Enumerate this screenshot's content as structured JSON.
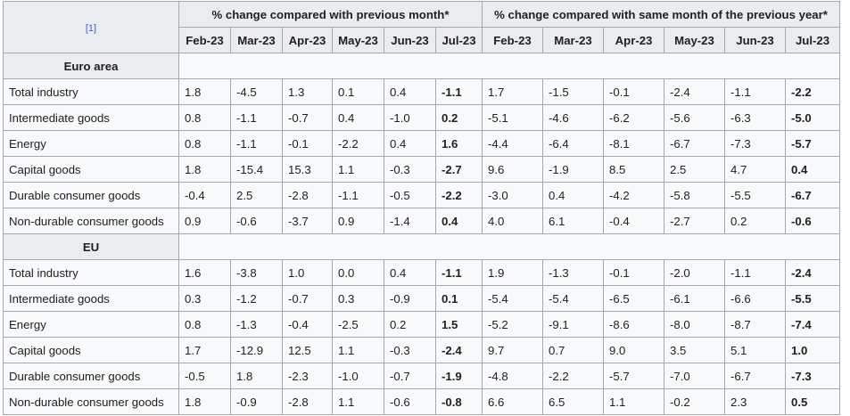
{
  "ref_label": "[1]",
  "group_headers": {
    "month": "% change compared with previous month*",
    "year": "% change compared with same month of the previous year*"
  },
  "months": [
    "Feb-23",
    "Mar-23",
    "Apr-23",
    "May-23",
    "Jun-23",
    "Jul-23"
  ],
  "sections": [
    {
      "title": "Euro area",
      "rows": [
        {
          "label": "Total industry",
          "month": [
            "1.8",
            "-4.5",
            "1.3",
            "0.1",
            "0.4",
            "-1.1"
          ],
          "year": [
            "1.7",
            "-1.5",
            "-0.1",
            "-2.4",
            "-1.1",
            "-2.2"
          ]
        },
        {
          "label": "Intermediate goods",
          "month": [
            "0.8",
            "-1.1",
            "-0.7",
            "0.4",
            "-1.0",
            "0.2"
          ],
          "year": [
            "-5.1",
            "-4.6",
            "-6.2",
            "-5.6",
            "-6.3",
            "-5.0"
          ]
        },
        {
          "label": "Energy",
          "month": [
            "0.8",
            "-1.1",
            "-0.1",
            "-2.2",
            "0.4",
            "1.6"
          ],
          "year": [
            "-4.4",
            "-6.4",
            "-8.1",
            "-6.7",
            "-7.3",
            "-5.7"
          ]
        },
        {
          "label": "Capital goods",
          "month": [
            "1.8",
            "-15.4",
            "15.3",
            "1.1",
            "-0.3",
            "-2.7"
          ],
          "year": [
            "9.6",
            "-1.9",
            "8.5",
            "2.5",
            "4.7",
            "0.4"
          ]
        },
        {
          "label": "Durable consumer goods",
          "month": [
            "-0.4",
            "2.5",
            "-2.8",
            "-1.1",
            "-0.5",
            "-2.2"
          ],
          "year": [
            "-3.0",
            "0.4",
            "-4.2",
            "-5.8",
            "-5.5",
            "-6.7"
          ]
        },
        {
          "label": "Non-durable consumer goods",
          "month": [
            "0.9",
            "-0.6",
            "-3.7",
            "0.9",
            "-1.4",
            "0.4"
          ],
          "year": [
            "4.0",
            "6.1",
            "-0.4",
            "-2.7",
            "0.2",
            "-0.6"
          ]
        }
      ]
    },
    {
      "title": "EU",
      "rows": [
        {
          "label": "Total industry",
          "month": [
            "1.6",
            "-3.8",
            "1.0",
            "0.0",
            "0.4",
            "-1.1"
          ],
          "year": [
            "1.9",
            "-1.3",
            "-0.1",
            "-2.0",
            "-1.1",
            "-2.4"
          ]
        },
        {
          "label": "Intermediate goods",
          "month": [
            "0.3",
            "-1.2",
            "-0.7",
            "0.3",
            "-0.9",
            "0.1"
          ],
          "year": [
            "-5.4",
            "-5.4",
            "-6.5",
            "-6.1",
            "-6.6",
            "-5.5"
          ]
        },
        {
          "label": "Energy",
          "month": [
            "0.8",
            "-1.3",
            "-0.4",
            "-2.5",
            "0.2",
            "1.5"
          ],
          "year": [
            "-5.2",
            "-9.1",
            "-8.6",
            "-8.0",
            "-8.7",
            "-7.4"
          ]
        },
        {
          "label": "Capital goods",
          "month": [
            "1.7",
            "-12.9",
            "12.5",
            "1.1",
            "-0.3",
            "-2.4"
          ],
          "year": [
            "9.7",
            "0.7",
            "9.0",
            "3.5",
            "5.1",
            "1.0"
          ]
        },
        {
          "label": "Durable consumer goods",
          "month": [
            "-0.5",
            "1.8",
            "-2.3",
            "-1.0",
            "-0.7",
            "-1.9"
          ],
          "year": [
            "-4.8",
            "-2.2",
            "-5.7",
            "-7.0",
            "-6.7",
            "-7.3"
          ]
        },
        {
          "label": "Non-durable consumer goods",
          "month": [
            "1.8",
            "-0.9",
            "-2.8",
            "1.1",
            "-0.6",
            "-0.8"
          ],
          "year": [
            "6.6",
            "6.5",
            "1.1",
            "-0.2",
            "2.3",
            "0.5"
          ]
        }
      ]
    }
  ]
}
